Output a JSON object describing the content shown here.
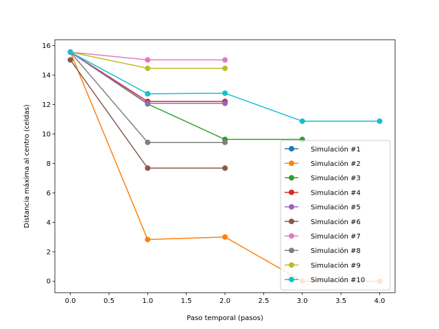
{
  "chart_data": {
    "type": "line",
    "xlabel": "Paso temporal (pasos)",
    "ylabel": "Distancia máxima al centro (celdas)",
    "xlim": [
      -0.2,
      4.2
    ],
    "ylim": [
      -0.78,
      16.4
    ],
    "xticks": [
      "0.0",
      "0.5",
      "1.0",
      "1.5",
      "2.0",
      "2.5",
      "3.0",
      "3.5",
      "4.0"
    ],
    "yticks": [
      "0",
      "2",
      "4",
      "6",
      "8",
      "10",
      "12",
      "14",
      "16"
    ],
    "legend_position": "lower right",
    "marker": "circle",
    "series": [
      {
        "name": "Simulación #1",
        "color": "#1f77b4",
        "x": [
          0
        ],
        "y": [
          15.56
        ]
      },
      {
        "name": "Simulación #2",
        "color": "#ff7f0e",
        "x": [
          0,
          1,
          2,
          3,
          4
        ],
        "y": [
          15.56,
          2.83,
          3.0,
          0.0,
          0.0
        ]
      },
      {
        "name": "Simulación #3",
        "color": "#2ca02c",
        "x": [
          0,
          1,
          2,
          3
        ],
        "y": [
          15.56,
          12.04,
          9.63,
          9.63
        ]
      },
      {
        "name": "Simulación #4",
        "color": "#d62728",
        "x": [
          0,
          1,
          2
        ],
        "y": [
          15.56,
          12.21,
          12.21
        ]
      },
      {
        "name": "Simulación #5",
        "color": "#9467bd",
        "x": [
          0,
          1,
          2
        ],
        "y": [
          15.56,
          12.08,
          12.08
        ]
      },
      {
        "name": "Simulación #6",
        "color": "#8c564b",
        "x": [
          0,
          1,
          2
        ],
        "y": [
          15.03,
          7.68,
          7.68
        ]
      },
      {
        "name": "Simulación #7",
        "color": "#e377c2",
        "x": [
          0,
          1,
          2
        ],
        "y": [
          15.56,
          15.03,
          15.03
        ]
      },
      {
        "name": "Simulación #8",
        "color": "#7f7f7f",
        "x": [
          0,
          1,
          2
        ],
        "y": [
          15.56,
          9.43,
          9.43
        ]
      },
      {
        "name": "Simulación #9",
        "color": "#bcbd22",
        "x": [
          0,
          1,
          2
        ],
        "y": [
          15.56,
          14.46,
          14.46
        ]
      },
      {
        "name": "Simulación #10",
        "color": "#17becf",
        "x": [
          0,
          1,
          2,
          3,
          4
        ],
        "y": [
          15.56,
          12.73,
          12.77,
          10.87,
          10.87
        ]
      }
    ]
  }
}
